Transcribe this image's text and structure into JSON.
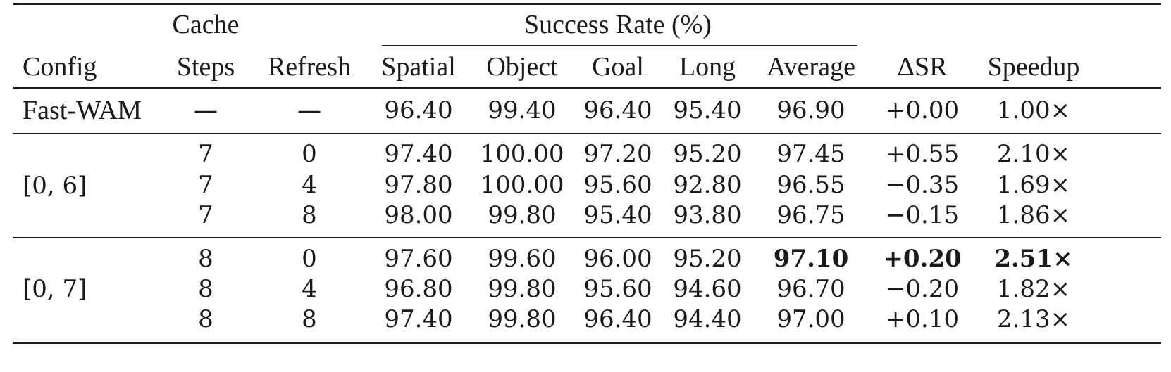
{
  "table": {
    "header": {
      "config": "Config",
      "cache_top": "Cache",
      "cache_bottom": "Steps",
      "refresh": "Refresh",
      "success_rate_group": "Success Rate (%)",
      "spatial": "Spatial",
      "object": "Object",
      "goal": "Goal",
      "long": "Long",
      "average": "Average",
      "delta_sr": "ΔSR",
      "speedup": "Speedup"
    },
    "baseline": {
      "config": "Fast-WAM",
      "cache_steps": "—",
      "refresh": "—",
      "spatial": "96.40",
      "object": "99.40",
      "goal": "96.40",
      "long": "95.40",
      "average": "96.90",
      "delta_sr": "+0.00",
      "speedup": "1.00×"
    },
    "groups": [
      {
        "config": "[0, 6]",
        "rows": [
          {
            "cache_steps": "7",
            "refresh": "0",
            "spatial": "97.40",
            "object": "100.00",
            "goal": "97.20",
            "long": "95.20",
            "average": "97.45",
            "delta_sr": "+0.55",
            "speedup": "2.10×"
          },
          {
            "cache_steps": "7",
            "refresh": "4",
            "spatial": "97.80",
            "object": "100.00",
            "goal": "95.60",
            "long": "92.80",
            "average": "96.55",
            "delta_sr": "−0.35",
            "speedup": "1.69×"
          },
          {
            "cache_steps": "7",
            "refresh": "8",
            "spatial": "98.00",
            "object": "99.80",
            "goal": "95.40",
            "long": "93.80",
            "average": "96.75",
            "delta_sr": "−0.15",
            "speedup": "1.86×"
          }
        ]
      },
      {
        "config": "[0, 7]",
        "rows": [
          {
            "cache_steps": "8",
            "refresh": "0",
            "spatial": "97.60",
            "object": "99.60",
            "goal": "96.00",
            "long": "95.20",
            "average": "97.10",
            "delta_sr": "+0.20",
            "speedup": "2.51×"
          },
          {
            "cache_steps": "8",
            "refresh": "4",
            "spatial": "96.80",
            "object": "99.80",
            "goal": "95.60",
            "long": "94.60",
            "average": "96.70",
            "delta_sr": "−0.20",
            "speedup": "1.82×"
          },
          {
            "cache_steps": "8",
            "refresh": "8",
            "spatial": "97.40",
            "object": "99.80",
            "goal": "96.40",
            "long": "94.40",
            "average": "97.00",
            "delta_sr": "+0.10",
            "speedup": "2.13×"
          }
        ]
      }
    ]
  }
}
